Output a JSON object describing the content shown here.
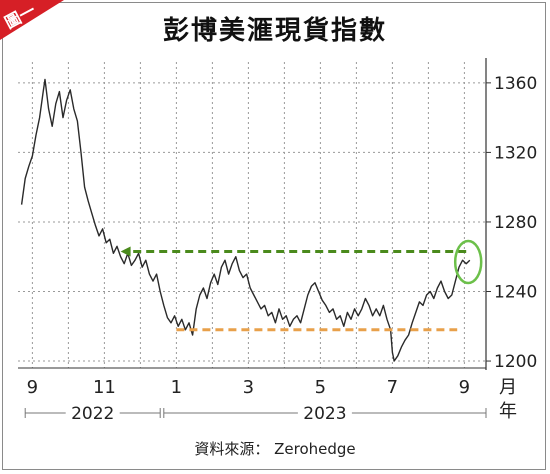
{
  "corner_label": "圖一",
  "title": "彭博美滙現貨指數",
  "source": "資料來源： Zerohedge",
  "colors": {
    "line": "#2a2a2a",
    "grid": "#9a9a9a",
    "green_dash": "#4a8a1c",
    "orange_dash": "#e8a04a",
    "badge": "#d61f26",
    "circle": "#6cc04a"
  },
  "chart_data": {
    "type": "line",
    "title": "彭博美滙現貨指數",
    "xlabel": "月 年",
    "ylabel": "",
    "ylim": [
      1196,
      1372
    ],
    "y_ticks": [
      "1200",
      "1240",
      "1280",
      "1320",
      "1360"
    ],
    "x_month_ticks": [
      {
        "label": "9",
        "x": 0
      },
      {
        "label": "11",
        "x": 2
      },
      {
        "label": "1",
        "x": 4
      },
      {
        "label": "3",
        "x": 6
      },
      {
        "label": "5",
        "x": 8
      },
      {
        "label": "7",
        "x": 10
      },
      {
        "label": "9",
        "x": 12
      }
    ],
    "unit_label_top": "月",
    "unit_label_bottom": "年",
    "year_labels": [
      {
        "label": "2022",
        "from": -0.2,
        "to": 3.55
      },
      {
        "label": "2023",
        "from": 3.65,
        "to": 12.6
      }
    ],
    "grid": true,
    "series": [
      {
        "x": [
          -0.3,
          -0.2,
          -0.1,
          0.0,
          0.1,
          0.2,
          0.3,
          0.35,
          0.45,
          0.55,
          0.65,
          0.75,
          0.85,
          0.95,
          1.05,
          1.15,
          1.25,
          1.35,
          1.45,
          1.55,
          1.65,
          1.75,
          1.85,
          1.95,
          2.05,
          2.15,
          2.25,
          2.35,
          2.45,
          2.55,
          2.65,
          2.75,
          2.85,
          2.95,
          3.05,
          3.15,
          3.25,
          3.35,
          3.45,
          3.55,
          3.65,
          3.75,
          3.85,
          3.95,
          4.05,
          4.15,
          4.25,
          4.35,
          4.45,
          4.55,
          4.65,
          4.75,
          4.85,
          4.95,
          5.05,
          5.15,
          5.25,
          5.35,
          5.45,
          5.55,
          5.65,
          5.75,
          5.85,
          5.95,
          6.05,
          6.15,
          6.25,
          6.35,
          6.45,
          6.55,
          6.65,
          6.75,
          6.85,
          6.95,
          7.05,
          7.15,
          7.25,
          7.35,
          7.45,
          7.55,
          7.65,
          7.75,
          7.85,
          7.95,
          8.05,
          8.15,
          8.25,
          8.35,
          8.45,
          8.55,
          8.65,
          8.75,
          8.85,
          8.95,
          9.05,
          9.15,
          9.25,
          9.35,
          9.45,
          9.55,
          9.65,
          9.75,
          9.85,
          9.95,
          10.0,
          10.05,
          10.15,
          10.25,
          10.35,
          10.45,
          10.55,
          10.65,
          10.75,
          10.85,
          10.95,
          11.05,
          11.15,
          11.25,
          11.35,
          11.45,
          11.55,
          11.65,
          11.75,
          11.85,
          11.95,
          12.05,
          12.15
        ],
        "y": [
          1290,
          1305,
          1312,
          1318,
          1330,
          1340,
          1355,
          1362,
          1345,
          1335,
          1348,
          1355,
          1340,
          1350,
          1356,
          1345,
          1338,
          1320,
          1300,
          1292,
          1285,
          1278,
          1272,
          1276,
          1268,
          1270,
          1262,
          1266,
          1260,
          1256,
          1262,
          1255,
          1258,
          1262,
          1254,
          1258,
          1250,
          1246,
          1250,
          1240,
          1232,
          1225,
          1222,
          1226,
          1220,
          1224,
          1218,
          1222,
          1215,
          1230,
          1238,
          1242,
          1236,
          1245,
          1250,
          1244,
          1254,
          1258,
          1250,
          1256,
          1260,
          1252,
          1248,
          1250,
          1242,
          1238,
          1234,
          1230,
          1232,
          1226,
          1228,
          1222,
          1230,
          1224,
          1226,
          1220,
          1224,
          1226,
          1222,
          1230,
          1238,
          1243,
          1245,
          1240,
          1235,
          1232,
          1228,
          1230,
          1224,
          1226,
          1220,
          1228,
          1224,
          1230,
          1226,
          1230,
          1236,
          1232,
          1226,
          1230,
          1226,
          1232,
          1224,
          1218,
          1205,
          1200,
          1203,
          1208,
          1212,
          1215,
          1222,
          1228,
          1234,
          1232,
          1238,
          1240,
          1236,
          1242,
          1246,
          1240,
          1236,
          1238,
          1246,
          1254,
          1258,
          1256,
          1258
        ]
      }
    ],
    "annotations": [
      {
        "type": "dashed-arrow",
        "color": "green",
        "from_x": 12.05,
        "to_x": 2.45,
        "y": 1263
      },
      {
        "type": "dashed-line",
        "color": "orange",
        "from_x": 4.0,
        "to_x": 11.8,
        "y": 1218
      },
      {
        "type": "circle",
        "color": "green",
        "x": 12.05,
        "y": 1257
      }
    ]
  }
}
